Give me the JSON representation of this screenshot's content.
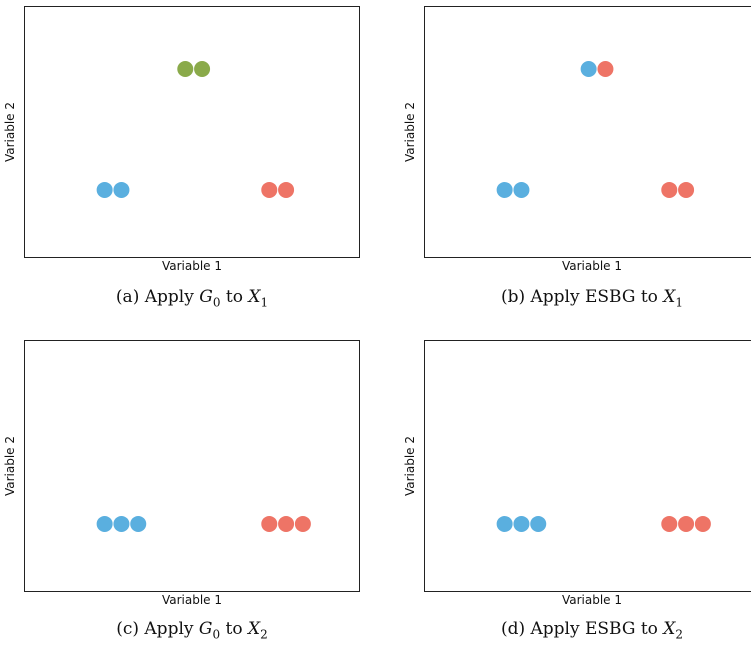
{
  "chart_data": [
    {
      "type": "scatter",
      "xlabel": "Variable 1",
      "ylabel": "Variable 2",
      "caption": {
        "prefix": "(a) Apply ",
        "m1": "G",
        "s1": "0",
        "mid": " to ",
        "m2": "X",
        "s2": "1"
      },
      "points": [
        {
          "x": 4.8,
          "y": 7.5,
          "color": "#8aaa4a"
        },
        {
          "x": 5.3,
          "y": 7.5,
          "color": "#8aaa4a"
        },
        {
          "x": 2.4,
          "y": 2.7,
          "color": "#5aafdf"
        },
        {
          "x": 2.9,
          "y": 2.7,
          "color": "#5aafdf"
        },
        {
          "x": 7.3,
          "y": 2.7,
          "color": "#ee7466"
        },
        {
          "x": 7.8,
          "y": 2.7,
          "color": "#ee7466"
        }
      ],
      "xlim": [
        0,
        10
      ],
      "ylim": [
        0,
        10
      ]
    },
    {
      "type": "scatter",
      "xlabel": "Variable 1",
      "ylabel": "Variable 2",
      "caption": {
        "prefix": "(b) Apply ESBG to ",
        "m1": "",
        "s1": "",
        "mid": "",
        "m2": "X",
        "s2": "1"
      },
      "points": [
        {
          "x": 4.9,
          "y": 7.5,
          "color": "#5aafdf"
        },
        {
          "x": 5.4,
          "y": 7.5,
          "color": "#ee7466"
        },
        {
          "x": 2.4,
          "y": 2.7,
          "color": "#5aafdf"
        },
        {
          "x": 2.9,
          "y": 2.7,
          "color": "#5aafdf"
        },
        {
          "x": 7.3,
          "y": 2.7,
          "color": "#ee7466"
        },
        {
          "x": 7.8,
          "y": 2.7,
          "color": "#ee7466"
        }
      ],
      "xlim": [
        0,
        10
      ],
      "ylim": [
        0,
        10
      ]
    },
    {
      "type": "scatter",
      "xlabel": "Variable 1",
      "ylabel": "Variable 2",
      "caption": {
        "prefix": "(c) Apply ",
        "m1": "G",
        "s1": "0",
        "mid": " to ",
        "m2": "X",
        "s2": "2"
      },
      "points": [
        {
          "x": 2.4,
          "y": 2.7,
          "color": "#5aafdf"
        },
        {
          "x": 2.9,
          "y": 2.7,
          "color": "#5aafdf"
        },
        {
          "x": 3.4,
          "y": 2.7,
          "color": "#5aafdf"
        },
        {
          "x": 7.3,
          "y": 2.7,
          "color": "#ee7466"
        },
        {
          "x": 7.8,
          "y": 2.7,
          "color": "#ee7466"
        },
        {
          "x": 8.3,
          "y": 2.7,
          "color": "#ee7466"
        }
      ],
      "xlim": [
        0,
        10
      ],
      "ylim": [
        0,
        10
      ]
    },
    {
      "type": "scatter",
      "xlabel": "Variable 1",
      "ylabel": "Variable 2",
      "caption": {
        "prefix": "(d) Apply ESBG to ",
        "m1": "",
        "s1": "",
        "mid": "",
        "m2": "X",
        "s2": "2"
      },
      "points": [
        {
          "x": 2.4,
          "y": 2.7,
          "color": "#5aafdf"
        },
        {
          "x": 2.9,
          "y": 2.7,
          "color": "#5aafdf"
        },
        {
          "x": 3.4,
          "y": 2.7,
          "color": "#5aafdf"
        },
        {
          "x": 7.3,
          "y": 2.7,
          "color": "#ee7466"
        },
        {
          "x": 7.8,
          "y": 2.7,
          "color": "#ee7466"
        },
        {
          "x": 8.3,
          "y": 2.7,
          "color": "#ee7466"
        }
      ],
      "xlim": [
        0,
        10
      ],
      "ylim": [
        0,
        10
      ]
    }
  ]
}
